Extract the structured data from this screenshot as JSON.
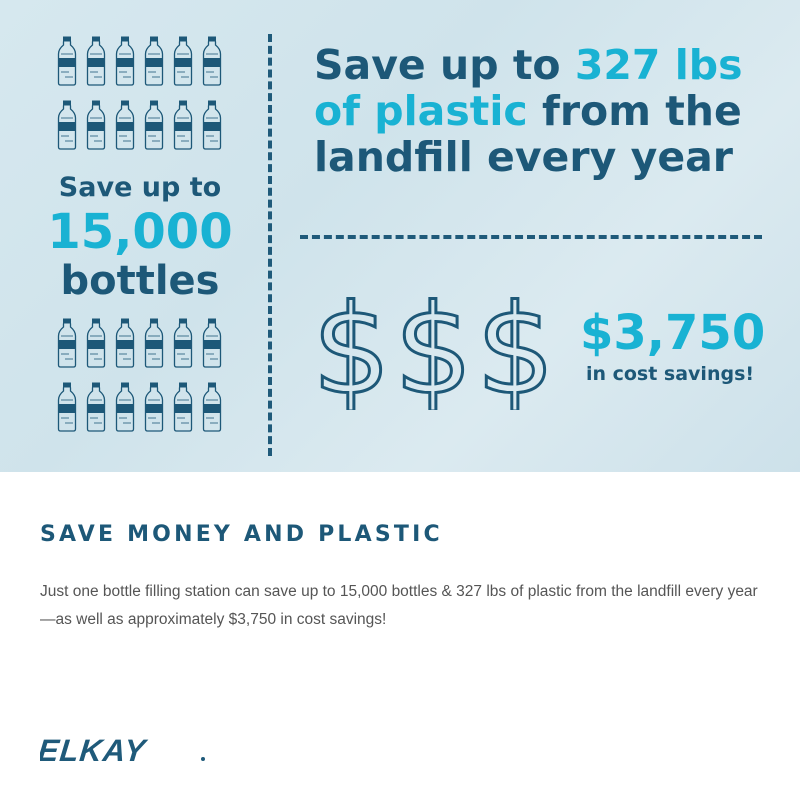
{
  "infographic": {
    "headline": {
      "part1": "Save up to ",
      "highlight1": "327 lbs",
      "line2_highlight": "of plastic",
      "line2_rest": " from the",
      "line3": "landfill every year"
    },
    "bottles_stat": {
      "line1": "Save up to",
      "number": "15,000",
      "line3": "bottles"
    },
    "cost_stat": {
      "amount": "$3,750",
      "label": "in cost savings!"
    },
    "colors": {
      "dark": "#1d5878",
      "accent": "#19b2d3",
      "background": "#d3e6ee"
    }
  },
  "section": {
    "heading": "SAVE MONEY AND PLASTIC",
    "body": "Just one bottle filling station can save up to 15,000 bottles & 327 lbs of plastic from the landfill every year—as well as approximately $3,750 in cost savings!"
  },
  "brand": {
    "logo": "ELKAY"
  }
}
